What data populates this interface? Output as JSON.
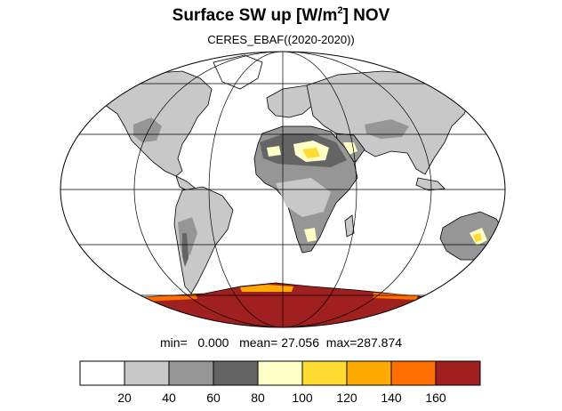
{
  "title": {
    "prefix": "Surface SW up [W/m",
    "superscript": "2",
    "suffix": "]  NOV"
  },
  "subtitle": "CERES_EBAF((2020-2020))",
  "stats": {
    "min_label": "min=",
    "min_value": "0.000",
    "mean_label": "mean=",
    "mean_value": "27.056",
    "max_label": "max=",
    "max_value": "287.874"
  },
  "map": {
    "projection": "Mollweide",
    "ocean_color": "#ffffff",
    "coastline_color": "#000000",
    "gridline_color": "#000000"
  },
  "colorbar": {
    "colors": [
      "#ffffff",
      "#c8c8c8",
      "#969696",
      "#646464",
      "#ffffc8",
      "#ffdc32",
      "#ffaa00",
      "#ff6e00",
      "#a02020"
    ],
    "tick_labels": [
      "20",
      "40",
      "60",
      "80",
      "100",
      "120",
      "140",
      "160"
    ]
  }
}
